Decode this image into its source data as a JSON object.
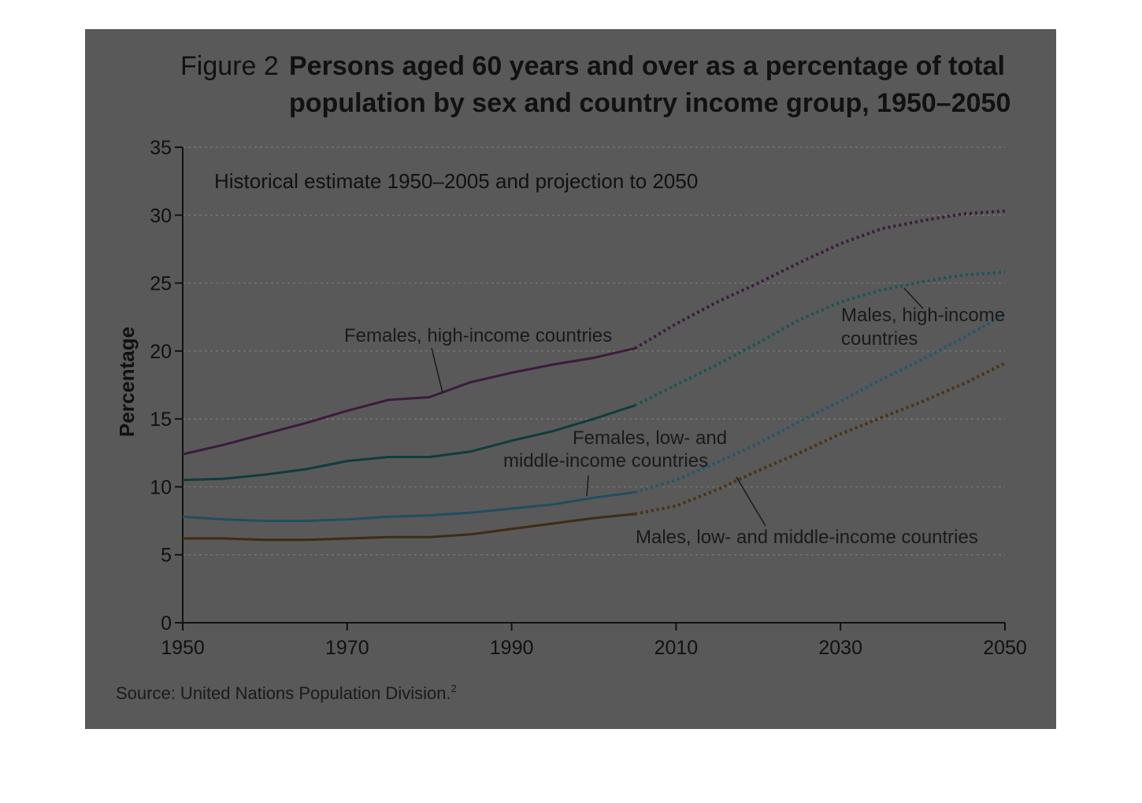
{
  "figure": {
    "label": "Figure 2",
    "title_line1": "Persons aged 60 years and over as a percentage of total",
    "title_line2": "population by sex and country income group, 1950–2050",
    "subtitle": "Historical estimate 1950–2005 and projection to 2050",
    "source_text": "Source: United Nations Population Division.",
    "source_sup": "2"
  },
  "colors": {
    "panel_background": "#595959",
    "gridline": "#7a7a7a",
    "axis": "#111111"
  },
  "chart_data": {
    "type": "line",
    "title": "Persons aged 60 years and over as a percentage of total population by sex and country income group, 1950–2050",
    "subtitle": "Historical estimate 1950–2005 and projection to 2050",
    "xlabel": "",
    "ylabel": "Percentage",
    "xlim": [
      1950,
      2050
    ],
    "ylim": [
      0,
      35
    ],
    "xticks": [
      1950,
      1970,
      1990,
      2010,
      2030,
      2050
    ],
    "yticks": [
      0,
      5,
      10,
      15,
      20,
      25,
      30,
      35
    ],
    "grid": "horizontal dotted",
    "projection_start": 2005,
    "series": [
      {
        "name": "Females, high-income countries",
        "historical_color": "#3c1b3c",
        "projection_color": "#3c1b3c",
        "x": [
          1950,
          1955,
          1960,
          1965,
          1970,
          1975,
          1980,
          1985,
          1990,
          1995,
          2000,
          2005,
          2010,
          2015,
          2020,
          2025,
          2030,
          2035,
          2040,
          2045,
          2050
        ],
        "y": [
          12.4,
          13.1,
          13.9,
          14.7,
          15.6,
          16.4,
          16.6,
          17.7,
          18.4,
          19.0,
          19.5,
          20.2,
          22.0,
          23.6,
          25.0,
          26.5,
          27.9,
          29.0,
          29.6,
          30.1,
          30.3
        ]
      },
      {
        "name": "Males, high-income countries",
        "historical_color": "#103c3c",
        "projection_color": "#1a5555",
        "x": [
          1950,
          1955,
          1960,
          1965,
          1970,
          1975,
          1980,
          1985,
          1990,
          1995,
          2000,
          2005,
          2010,
          2015,
          2020,
          2025,
          2030,
          2035,
          2040,
          2045,
          2050
        ],
        "y": [
          10.5,
          10.6,
          10.9,
          11.3,
          11.9,
          12.2,
          12.2,
          12.6,
          13.4,
          14.1,
          15.0,
          16.0,
          17.5,
          19.0,
          20.6,
          22.3,
          23.6,
          24.5,
          25.1,
          25.6,
          25.8
        ]
      },
      {
        "name": "Females, low- and middle-income countries",
        "historical_color": "#1f4f5f",
        "projection_color": "#23566a",
        "x": [
          1950,
          1955,
          1960,
          1965,
          1970,
          1975,
          1980,
          1985,
          1990,
          1995,
          2000,
          2005,
          2010,
          2015,
          2020,
          2025,
          2030,
          2035,
          2040,
          2045,
          2050
        ],
        "y": [
          7.8,
          7.6,
          7.5,
          7.5,
          7.6,
          7.8,
          7.9,
          8.1,
          8.4,
          8.7,
          9.2,
          9.6,
          10.5,
          11.8,
          13.2,
          14.8,
          16.3,
          17.9,
          19.4,
          21.0,
          22.7
        ]
      },
      {
        "name": "Males, low- and middle-income countries",
        "historical_color": "#3f2c14",
        "projection_color": "#4a3212",
        "x": [
          1950,
          1955,
          1960,
          1965,
          1970,
          1975,
          1980,
          1985,
          1990,
          1995,
          2000,
          2005,
          2010,
          2015,
          2020,
          2025,
          2030,
          2035,
          2040,
          2045,
          2050
        ],
        "y": [
          6.2,
          6.2,
          6.1,
          6.1,
          6.2,
          6.3,
          6.3,
          6.5,
          6.9,
          7.3,
          7.7,
          8.0,
          8.6,
          9.8,
          11.2,
          12.5,
          13.9,
          15.1,
          16.3,
          17.6,
          19.1
        ]
      }
    ],
    "annotations": [
      {
        "text": "Females, high-income countries"
      },
      {
        "text_line1": "Males, high-income",
        "text_line2": "countries"
      },
      {
        "text_line1": "Females, low- and",
        "text_line2": "middle-income countries"
      },
      {
        "text": "Males, low- and middle-income countries"
      }
    ]
  }
}
